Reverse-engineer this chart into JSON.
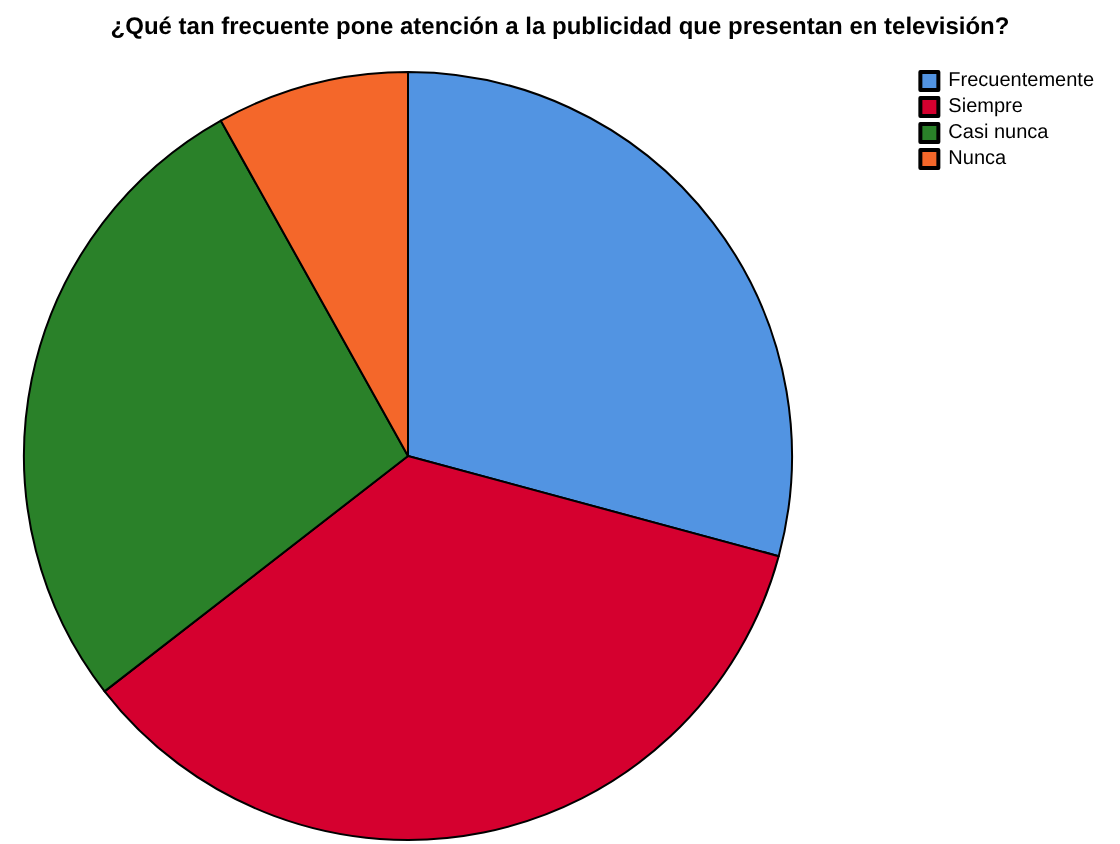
{
  "chart_data": {
    "type": "pie",
    "title": "¿Qué tan frecuente pone atención a la publicidad que presentan en televisión?",
    "categories": [
      "Frecuentemente",
      "Siempre",
      "Casi nunca",
      "Nunca"
    ],
    "values": [
      29.2,
      35.3,
      27.4,
      8.1
    ],
    "colors": [
      "#5294e2",
      "#d5002f",
      "#2a8129",
      "#f4672a"
    ],
    "legend": "top right"
  }
}
